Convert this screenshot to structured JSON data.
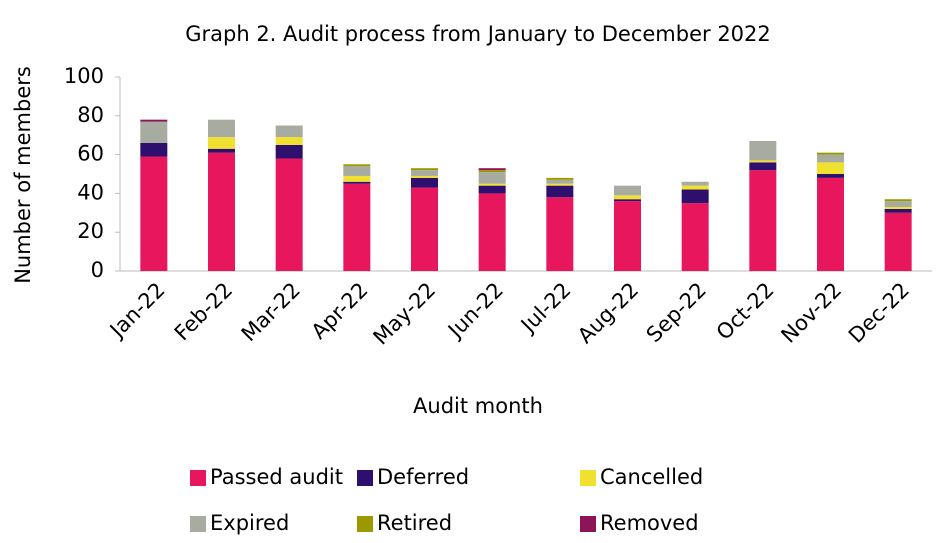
{
  "chart_data": {
    "type": "stacked_bar",
    "title": "Graph 2. Audit process from January to December 2022",
    "x_label": "Audit month",
    "y_label": "Number of members",
    "categories": [
      "Jan-22",
      "Feb-22",
      "Mar-22",
      "Apr-22",
      "May-22",
      "Jun-22",
      "Jul-22",
      "Aug-22",
      "Sep-22",
      "Oct-22",
      "Nov-22",
      "Dec-22"
    ],
    "series": [
      {
        "name": "Passed audit",
        "color": "#e8175d",
        "values": [
          59,
          61,
          58,
          45,
          43,
          40,
          38,
          36,
          35,
          52,
          48,
          30
        ]
      },
      {
        "name": "Deferred",
        "color": "#2e0f6e",
        "values": [
          7,
          2,
          7,
          1,
          5,
          4,
          6,
          1,
          7,
          4,
          2,
          2
        ]
      },
      {
        "name": "Cancelled",
        "color": "#f0e130",
        "values": [
          0,
          6,
          4,
          3,
          1,
          1,
          1,
          2,
          2,
          1,
          6,
          1
        ]
      },
      {
        "name": "Expired",
        "color": "#a7aba0",
        "values": [
          11,
          9,
          6,
          5,
          3,
          6,
          2,
          5,
          2,
          10,
          4,
          3
        ]
      },
      {
        "name": "Retired",
        "color": "#9a9a00",
        "values": [
          0,
          0,
          0,
          1,
          1,
          1,
          1,
          0,
          0,
          0,
          1,
          1
        ]
      },
      {
        "name": "Removed",
        "color": "#8e1459",
        "values": [
          1,
          0,
          0,
          0,
          0,
          1,
          0,
          0,
          0,
          0,
          0,
          0
        ]
      }
    ],
    "ylim": [
      0,
      100
    ],
    "yticks": [
      0,
      20,
      40,
      60,
      80,
      100
    ],
    "legend": "bottom"
  }
}
